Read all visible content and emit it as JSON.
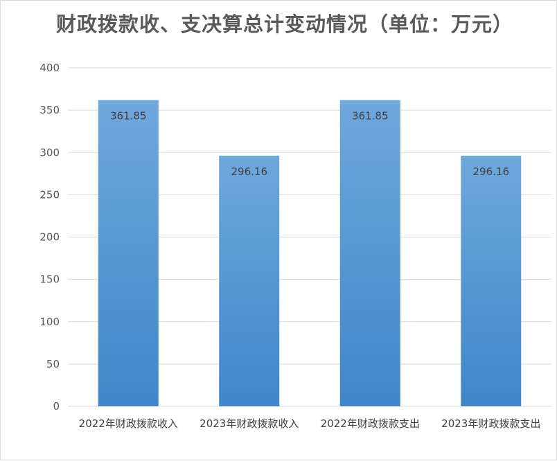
{
  "chart_data": {
    "type": "bar",
    "title": "财政拨款收、支决算总计变动情况（单位：万元）",
    "categories": [
      "2022年财政拨款收入",
      "2023年财政拨款收入",
      "2022年财政拨款支出",
      "2023年财政拨款支出"
    ],
    "values": [
      361.85,
      296.16,
      361.85,
      296.16
    ],
    "data_labels": [
      "361.85",
      "296.16",
      "361.85",
      "296.16"
    ],
    "ylim": [
      0,
      400
    ],
    "yticks": [
      0,
      50,
      100,
      150,
      200,
      250,
      300,
      350,
      400
    ],
    "grid": true,
    "legend": "none",
    "colors": {
      "bar_top": "#6fa8dc",
      "bar_bottom": "#3f87c9",
      "grid": "#d9d9d9"
    }
  }
}
